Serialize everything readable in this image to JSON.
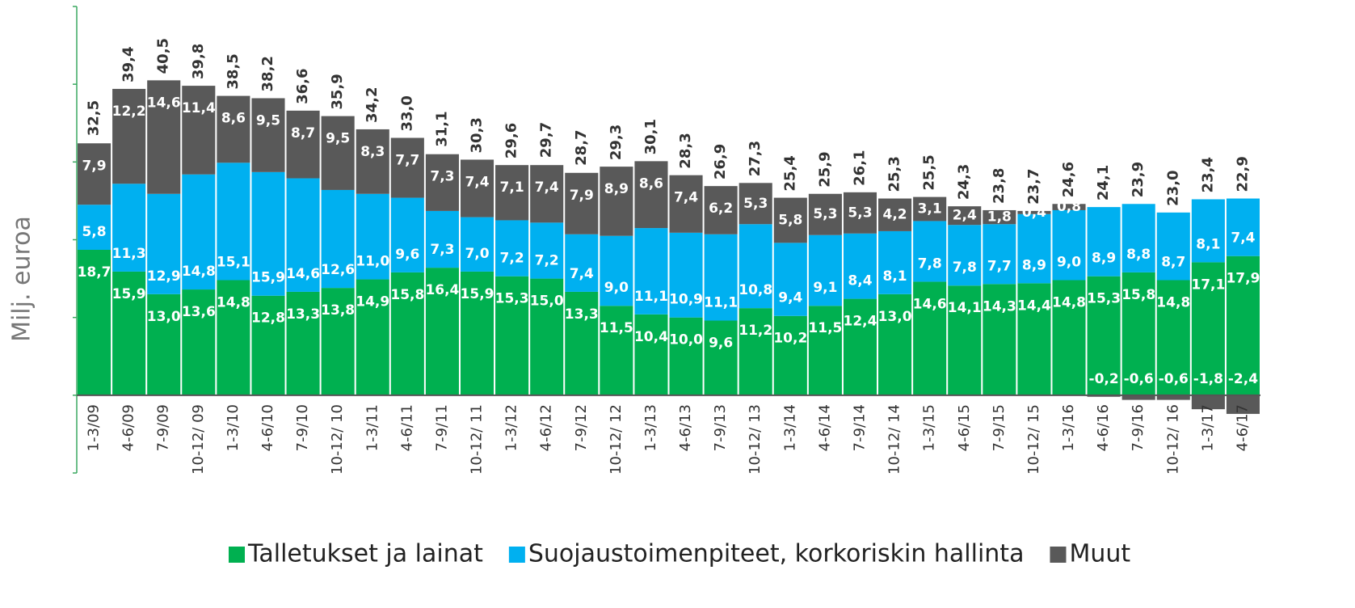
{
  "chart_data": {
    "type": "stacked_bar",
    "y_label": "Milj. euroa",
    "categories": [
      "1-3/09",
      "4-6/09",
      "7-9/09",
      "10-12/ 09",
      "1-3/10",
      "4-6/10",
      "7-9/10",
      "10-12/ 10",
      "1-3/11",
      "4-6/11",
      "7-9/11",
      "10-12/ 11",
      "1-3/12",
      "4-6/12",
      "7-9/12",
      "10-12/ 12",
      "1-3/13",
      "4-6/13",
      "7-9/13",
      "10-12/ 13",
      "1-3/14",
      "4-6/14",
      "7-9/14",
      "10-12/ 14",
      "1-3/15",
      "4-6/15",
      "7-9/15",
      "10-12/ 15",
      "1-3/16",
      "4-6/16",
      "7-9/16",
      "10-12/ 16",
      "1-3/17",
      "4-6/17"
    ],
    "series": [
      {
        "name": "Talletukset ja lainat",
        "color": "#00b050",
        "values": [
          18.7,
          15.9,
          13.0,
          13.6,
          14.8,
          12.8,
          13.3,
          13.8,
          14.9,
          15.8,
          16.4,
          15.9,
          15.3,
          15.0,
          13.3,
          11.5,
          10.4,
          10.0,
          9.6,
          11.2,
          10.2,
          11.5,
          12.4,
          13.0,
          14.6,
          14.1,
          14.3,
          14.4,
          14.8,
          15.3,
          15.8,
          14.8,
          17.1,
          17.9
        ],
        "value_labels": [
          "18,7",
          "15,9",
          "13,0",
          "13,6",
          "14,8",
          "12,8",
          "13,3",
          "13,8",
          "14,9",
          "15,8",
          "16,4",
          "15,9",
          "15,3",
          "15,0",
          "13,3",
          "11,5",
          "10,4",
          "10,0",
          "9,6",
          "11,2",
          "10,2",
          "11,5",
          "12,4",
          "13,0",
          "14,6",
          "14,1",
          "14,3",
          "14,4",
          "14,8",
          "15,3",
          "15,8",
          "14,8",
          "17,1",
          "17,9"
        ]
      },
      {
        "name": "Suojaustoimenpiteet, korkoriskin hallinta",
        "color": "#00b0f0",
        "values": [
          5.8,
          11.3,
          12.9,
          14.8,
          15.1,
          15.9,
          14.6,
          12.6,
          11.0,
          9.6,
          7.3,
          7.0,
          7.2,
          7.2,
          7.4,
          9.0,
          11.1,
          10.9,
          11.1,
          10.8,
          9.4,
          9.1,
          8.4,
          8.1,
          7.8,
          7.8,
          7.7,
          8.9,
          9.0,
          8.9,
          8.8,
          8.7,
          8.1,
          7.4
        ],
        "value_labels": [
          "5,8",
          "11,3",
          "12,9",
          "14,8",
          "15,1",
          "15,9",
          "14,6",
          "12,6",
          "11,0",
          "9,6",
          "7,3",
          "7,0",
          "7,2",
          "7,2",
          "7,4",
          "9,0",
          "11,1",
          "10,9",
          "11,1",
          "10,8",
          "9,4",
          "9,1",
          "8,4",
          "8,1",
          "7,8",
          "7,8",
          "7,7",
          "8,9",
          "9,0",
          "8,9",
          "8,8",
          "8,7",
          "8,1",
          "7,4"
        ]
      },
      {
        "name": "Muut",
        "color": "#595959",
        "values": [
          7.9,
          12.2,
          14.6,
          11.4,
          8.6,
          9.5,
          8.7,
          9.5,
          8.3,
          7.7,
          7.3,
          7.4,
          7.1,
          7.4,
          7.9,
          8.9,
          8.6,
          7.4,
          6.2,
          5.3,
          5.8,
          5.3,
          5.3,
          4.2,
          3.1,
          2.4,
          1.8,
          0.4,
          0.8,
          -0.2,
          -0.6,
          -0.6,
          -1.8,
          -2.4
        ],
        "value_labels": [
          "7,9",
          "12,2",
          "14,6",
          "11,4",
          "8,6",
          "9,5",
          "8,7",
          "9,5",
          "8,3",
          "7,7",
          "7,3",
          "7,4",
          "7,1",
          "7,4",
          "7,9",
          "8,9",
          "8,6",
          "7,4",
          "6,2",
          "5,3",
          "5,8",
          "5,3",
          "5,3",
          "4,2",
          "3,1",
          "2,4",
          "1,8",
          "0,4",
          "0,8",
          "-0,2",
          "-0,6",
          "-0,6",
          "-1,8",
          "-2,4"
        ]
      }
    ],
    "totals": [
      32.5,
      39.4,
      40.5,
      39.8,
      38.5,
      38.2,
      36.6,
      35.9,
      34.2,
      33.0,
      31.1,
      30.3,
      29.6,
      29.7,
      28.7,
      29.3,
      30.1,
      28.3,
      26.9,
      27.3,
      25.4,
      25.9,
      26.1,
      25.3,
      25.5,
      24.3,
      23.8,
      23.7,
      24.6,
      24.1,
      23.9,
      23.0,
      23.4,
      22.9
    ],
    "total_labels": [
      "32,5",
      "39,4",
      "40,5",
      "39,8",
      "38,5",
      "38,2",
      "36,6",
      "35,9",
      "34,2",
      "33,0",
      "31,1",
      "30,3",
      "29,6",
      "29,7",
      "28,7",
      "29,3",
      "30,1",
      "28,3",
      "26,9",
      "27,3",
      "25,4",
      "25,9",
      "26,1",
      "25,3",
      "25,5",
      "24,3",
      "23,8",
      "23,7",
      "24,6",
      "24,1",
      "23,9",
      "23,0",
      "23,4",
      "22,9"
    ],
    "ylim": [
      -10,
      50
    ],
    "yticks": [
      -10,
      0,
      10,
      20,
      30,
      40,
      50
    ],
    "legend": "bottom"
  }
}
